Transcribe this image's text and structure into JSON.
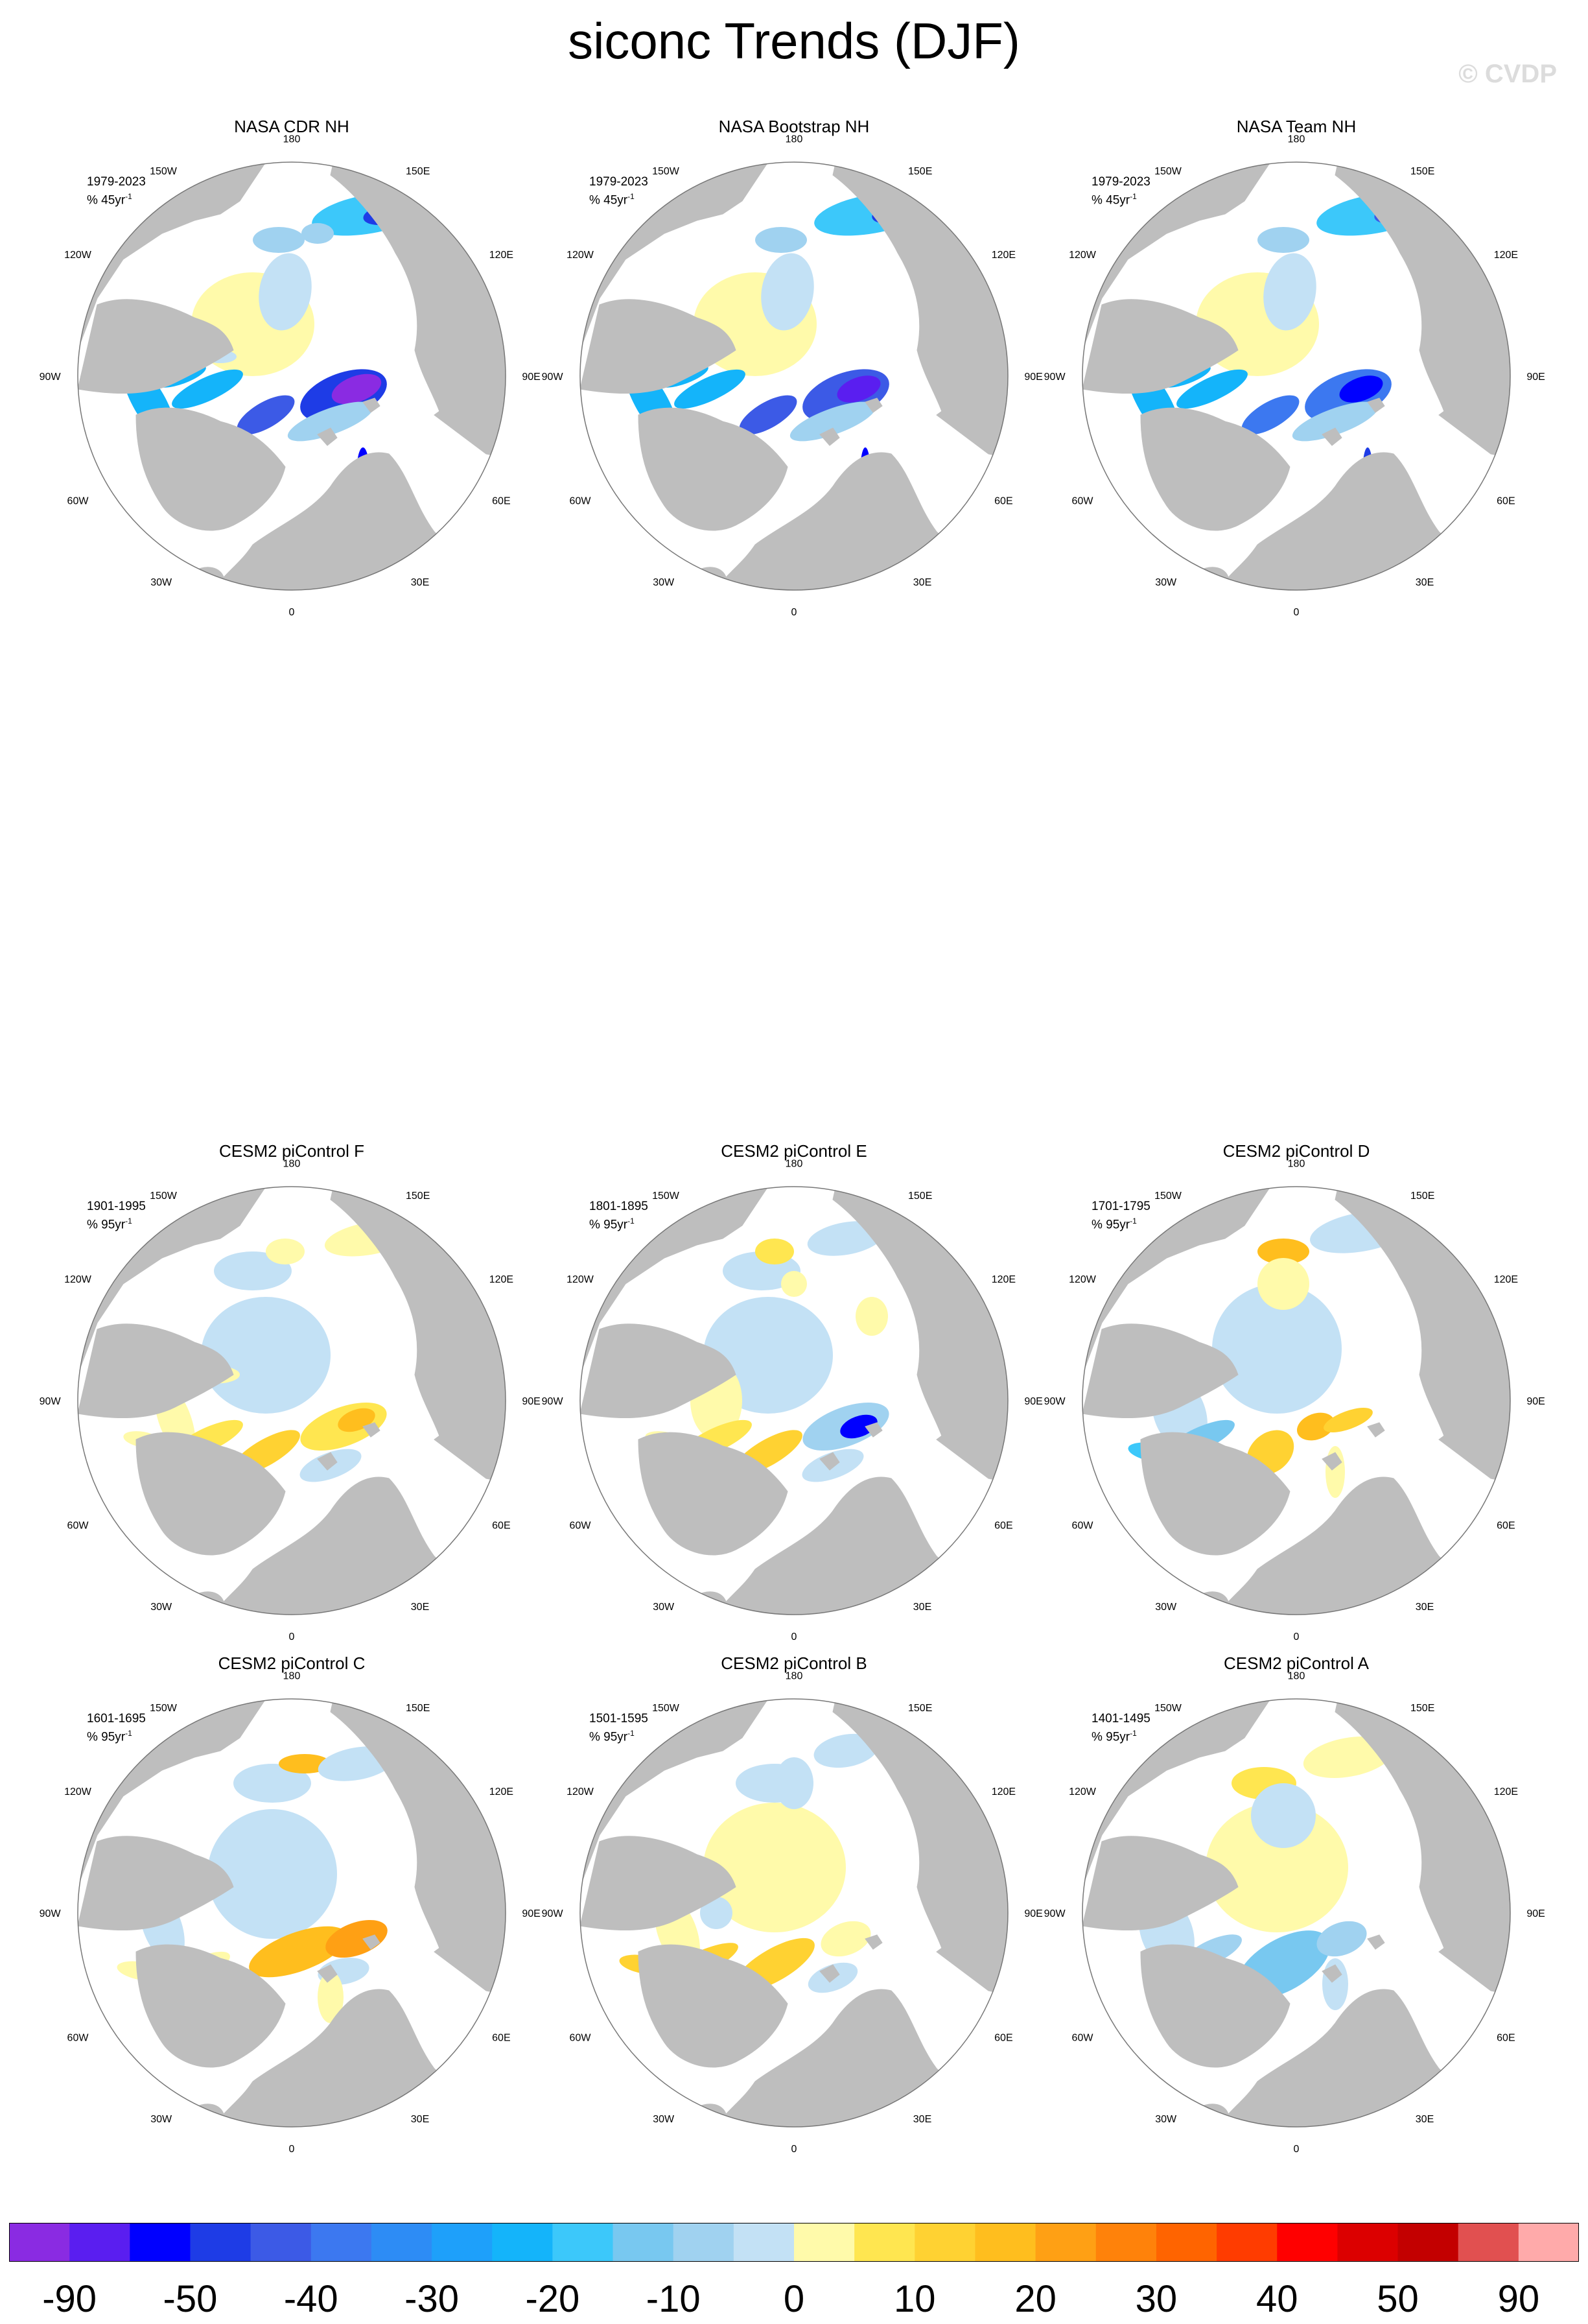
{
  "title": "siconc Trends (DJF)",
  "watermark": "© CVDP",
  "colorbar": {
    "colors": [
      "#8a2be2",
      "#5a1ef0",
      "#0000ff",
      "#1e3ce6",
      "#3c5ae6",
      "#3c78f0",
      "#2d8cf5",
      "#1ea0fa",
      "#14b4fa",
      "#3cc8fa",
      "#78c8f0",
      "#a0d2f0",
      "#c3e1f5",
      "#fffaaa",
      "#ffe650",
      "#ffd232",
      "#ffbe1e",
      "#ffa014",
      "#ff820a",
      "#ff6400",
      "#ff3c00",
      "#ff0000",
      "#dc0000",
      "#c30000",
      "#e15050",
      "#ffaaaa"
    ],
    "labels": [
      "-90",
      "-50",
      "-40",
      "-30",
      "-20",
      "-10",
      "0",
      "10",
      "20",
      "30",
      "40",
      "50",
      "90"
    ]
  },
  "lon_labels": [
    "180",
    "150E",
    "120E",
    "90E",
    "60E",
    "30E",
    "0",
    "30W",
    "60W",
    "90W",
    "120W",
    "150W"
  ],
  "panels": [
    {
      "title": "NASA CDR NH",
      "period": "1979-2023",
      "units_line": "% 45yr",
      "units_sup": "-1",
      "pattern": "obs1"
    },
    {
      "title": "NASA Bootstrap NH",
      "period": "1979-2023",
      "units_line": "% 45yr",
      "units_sup": "-1",
      "pattern": "obs2"
    },
    {
      "title": "NASA Team NH",
      "period": "1979-2023",
      "units_line": "% 45yr",
      "units_sup": "-1",
      "pattern": "obs3"
    },
    {
      "title": "CESM2 piControl F",
      "period": "1901-1995",
      "units_line": "% 95yr",
      "units_sup": "-1",
      "pattern": "F"
    },
    {
      "title": "CESM2 piControl E",
      "period": "1801-1895",
      "units_line": "% 95yr",
      "units_sup": "-1",
      "pattern": "E"
    },
    {
      "title": "CESM2 piControl D",
      "period": "1701-1795",
      "units_line": "% 95yr",
      "units_sup": "-1",
      "pattern": "D"
    },
    {
      "title": "CESM2 piControl C",
      "period": "1601-1695",
      "units_line": "% 95yr",
      "units_sup": "-1",
      "pattern": "C"
    },
    {
      "title": "CESM2 piControl B",
      "period": "1501-1595",
      "units_line": "% 95yr",
      "units_sup": "-1",
      "pattern": "B"
    },
    {
      "title": "CESM2 piControl A",
      "period": "1401-1495",
      "units_line": "% 95yr",
      "units_sup": "-1",
      "pattern": "A"
    }
  ]
}
